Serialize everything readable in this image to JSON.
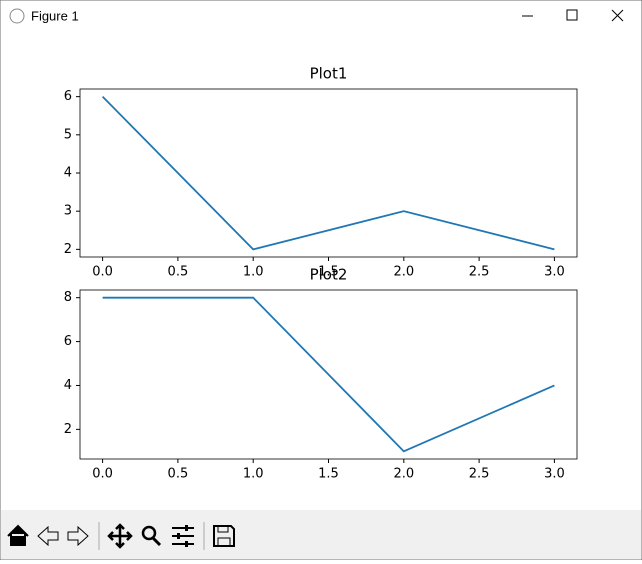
{
  "window": {
    "title": "Figure 1"
  },
  "chart_data": [
    {
      "type": "line",
      "title": "Plot1",
      "x": [
        0,
        1,
        2,
        3
      ],
      "values": [
        6,
        2,
        3,
        2
      ],
      "color": "#1f77b4",
      "xlim": [
        -0.15,
        3.15
      ],
      "xticks": [
        {
          "value": 0,
          "label": "0.0"
        },
        {
          "value": 0.5,
          "label": "0.5"
        },
        {
          "value": 1,
          "label": "1.0"
        },
        {
          "value": 1.5,
          "label": "1.5"
        },
        {
          "value": 2,
          "label": "2.0"
        },
        {
          "value": 2.5,
          "label": "2.5"
        },
        {
          "value": 3,
          "label": "3.0"
        }
      ],
      "ylim": [
        1.8,
        6.2
      ],
      "yticks": [
        2,
        3,
        4,
        5,
        6
      ]
    },
    {
      "type": "line",
      "title": "Plot2",
      "x": [
        0,
        1,
        2,
        3
      ],
      "values": [
        8,
        8,
        1,
        4
      ],
      "color": "#1f77b4",
      "xlim": [
        -0.15,
        3.15
      ],
      "xticks": [
        {
          "value": 0,
          "label": "0.0"
        },
        {
          "value": 0.5,
          "label": "0.5"
        },
        {
          "value": 1,
          "label": "1.0"
        },
        {
          "value": 1.5,
          "label": "1.5"
        },
        {
          "value": 2,
          "label": "2.0"
        },
        {
          "value": 2.5,
          "label": "2.5"
        },
        {
          "value": 3,
          "label": "3.0"
        }
      ],
      "ylim": [
        0.65,
        8.35
      ],
      "yticks": [
        2,
        4,
        6,
        8
      ]
    }
  ]
}
